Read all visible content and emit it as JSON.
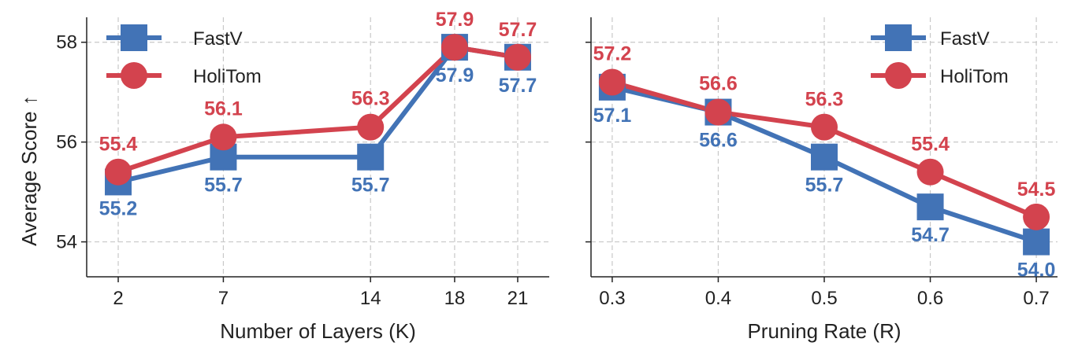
{
  "colors": {
    "fastv": "#4273b6",
    "holitom": "#d3434e",
    "grid": "#c8c8c8",
    "axis": "#222222"
  },
  "chart_data": [
    {
      "type": "line",
      "xlabel": "Number of Layers (K)",
      "ylabel": "Average Score ↑",
      "x": [
        2,
        7,
        14,
        18,
        21
      ],
      "xticks": [
        "2",
        "7",
        "14",
        "18",
        "21"
      ],
      "xlim": [
        0.5,
        22.5
      ],
      "yticks": [
        "54",
        "56",
        "58"
      ],
      "ylim": [
        53.3,
        58.5
      ],
      "grid": true,
      "legend_position": "top-left",
      "series": [
        {
          "name": "FastV",
          "marker": "square",
          "color": "#4273b6",
          "values": [
            55.2,
            55.7,
            55.7,
            57.9,
            57.7
          ],
          "labels": [
            "55.2",
            "55.7",
            "55.7",
            "57.9",
            "57.7"
          ]
        },
        {
          "name": "HoliTom",
          "marker": "circle",
          "color": "#d3434e",
          "values": [
            55.4,
            56.1,
            56.3,
            57.9,
            57.7
          ],
          "labels": [
            "55.4",
            "56.1",
            "56.3",
            "57.9",
            "57.7"
          ]
        }
      ]
    },
    {
      "type": "line",
      "xlabel": "Pruning Rate (R)",
      "ylabel": "",
      "x": [
        0.3,
        0.4,
        0.5,
        0.6,
        0.7
      ],
      "xticks": [
        "0.3",
        "0.4",
        "0.5",
        "0.6",
        "0.7"
      ],
      "xlim": [
        0.28,
        0.72
      ],
      "yticks": [
        "54",
        "56",
        "58"
      ],
      "ylim": [
        53.3,
        58.5
      ],
      "grid": true,
      "legend_position": "top-right",
      "series": [
        {
          "name": "FastV",
          "marker": "square",
          "color": "#4273b6",
          "values": [
            57.1,
            56.6,
            55.7,
            54.7,
            54.0
          ],
          "labels": [
            "57.1",
            "56.6",
            "55.7",
            "54.7",
            "54.0"
          ]
        },
        {
          "name": "HoliTom",
          "marker": "circle",
          "color": "#d3434e",
          "values": [
            57.2,
            56.6,
            56.3,
            55.4,
            54.5
          ],
          "labels": [
            "57.2",
            "56.6",
            "56.3",
            "55.4",
            "54.5"
          ]
        }
      ]
    }
  ]
}
